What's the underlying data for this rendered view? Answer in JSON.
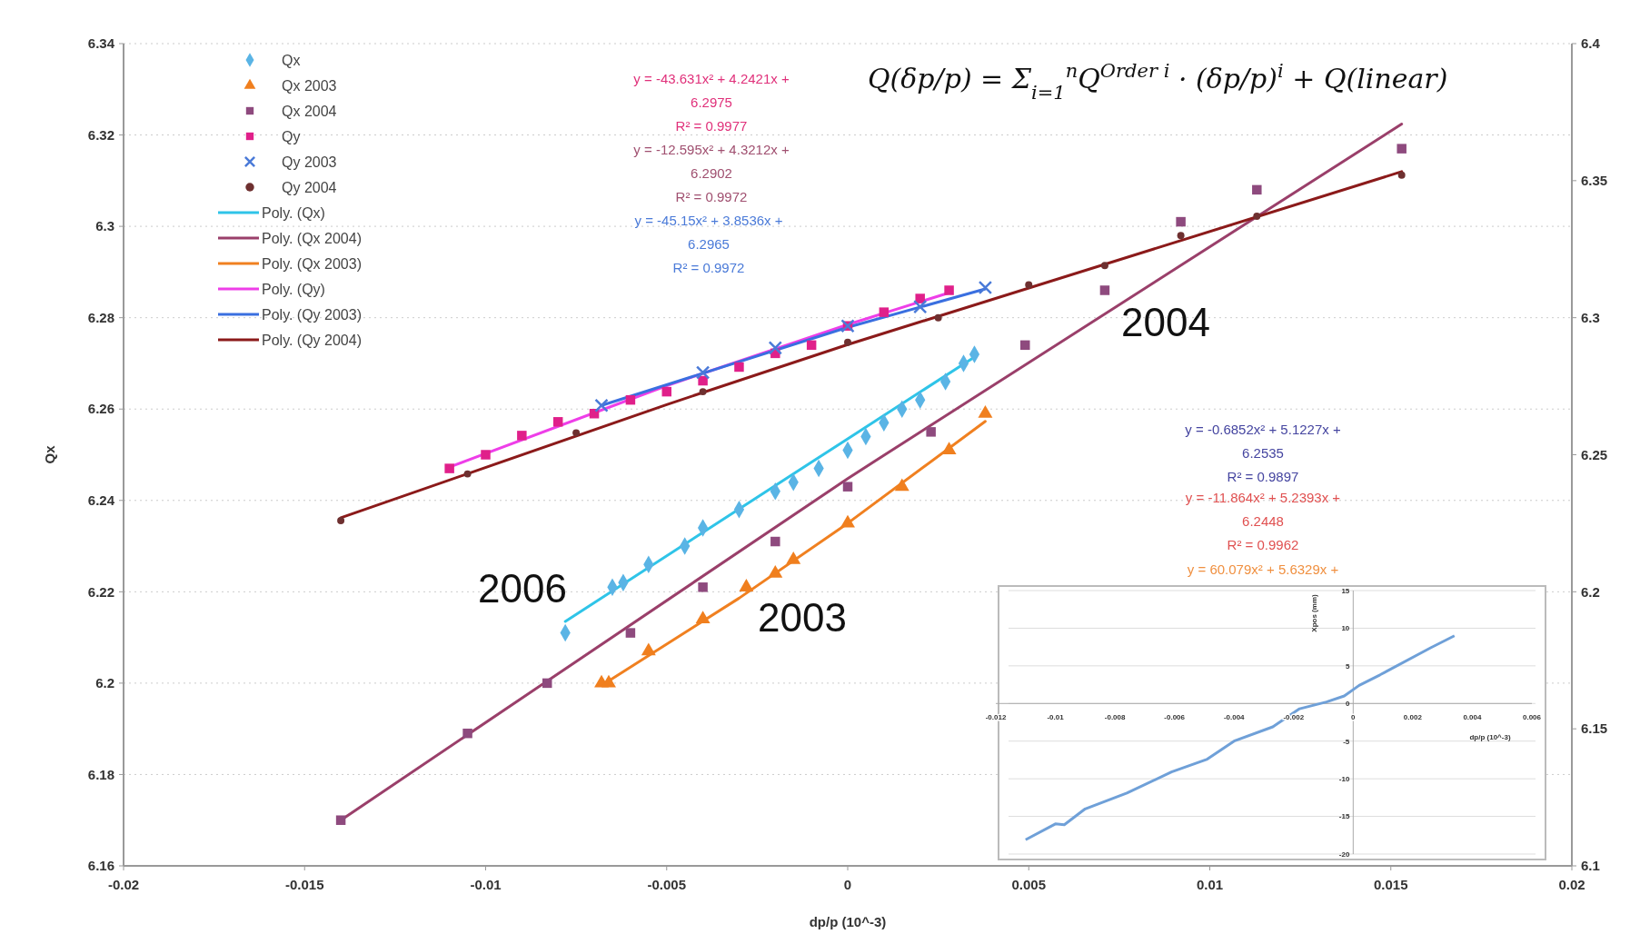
{
  "chart_data": [
    {
      "type": "scatter",
      "xlabel": "dp/p (10^-3)",
      "ylabel": "Qx",
      "xlim": [
        -0.02,
        0.02
      ],
      "xticks": [
        -0.02,
        -0.015,
        -0.01,
        -0.005,
        0,
        0.005,
        0.01,
        0.015,
        0.02
      ],
      "ylim": [
        6.16,
        6.34
      ],
      "yticks": [
        6.16,
        6.18,
        6.2,
        6.22,
        6.24,
        6.26,
        6.28,
        6.3,
        6.32,
        6.34
      ],
      "y2lim": [
        6.1,
        6.4
      ],
      "y2ticks": [
        6.1,
        6.15,
        6.2,
        6.25,
        6.3,
        6.35,
        6.4
      ],
      "grid": "y",
      "legend": "top left",
      "series": [
        {
          "name": "Qx",
          "marker": "diamond",
          "color": "#5ab4e5",
          "x": [
            -0.0078,
            -0.0065,
            -0.0062,
            -0.0055,
            -0.0045,
            -0.004,
            -0.003,
            -0.002,
            -0.0015,
            -0.0008,
            0,
            0.0005,
            0.001,
            0.0015,
            0.002,
            0.0027,
            0.0032,
            0.0035
          ],
          "values": [
            6.211,
            6.221,
            6.222,
            6.226,
            6.23,
            6.234,
            6.238,
            6.242,
            6.244,
            6.247,
            6.251,
            6.254,
            6.257,
            6.26,
            6.262,
            6.266,
            6.27,
            6.272
          ]
        },
        {
          "name": "Qx 2003",
          "marker": "triangle",
          "color": "#f07f1e",
          "x": [
            -0.0068,
            -0.0066,
            -0.0055,
            -0.004,
            -0.0028,
            -0.002,
            -0.0015,
            0,
            0.0015,
            0.0028,
            0.0038
          ],
          "values": [
            6.2,
            6.2,
            6.207,
            6.214,
            6.221,
            6.224,
            6.227,
            6.235,
            6.243,
            6.251,
            6.259
          ]
        },
        {
          "name": "Qx 2004",
          "marker": "square",
          "color": "#8e4a7e",
          "x": [
            -0.014,
            -0.0105,
            -0.0083,
            -0.006,
            -0.004,
            -0.002,
            0,
            0.0023,
            0.0049,
            0.0071,
            0.0092,
            0.0113,
            0.0153
          ],
          "values": [
            6.17,
            6.189,
            6.2,
            6.211,
            6.221,
            6.231,
            6.243,
            6.255,
            6.274,
            6.286,
            6.301,
            6.308,
            6.317
          ]
        },
        {
          "name": "Qy",
          "marker": "square",
          "axis": "y2",
          "color": "#e0208a",
          "x": [
            -0.011,
            -0.01,
            -0.009,
            -0.008,
            -0.007,
            -0.006,
            -0.005,
            -0.004,
            -0.003,
            -0.002,
            -0.001,
            0,
            0.001,
            0.002,
            0.0028
          ],
          "values": [
            6.245,
            6.25,
            6.257,
            6.262,
            6.265,
            6.27,
            6.273,
            6.277,
            6.282,
            6.287,
            6.29,
            6.297,
            6.302,
            6.307,
            6.31
          ]
        },
        {
          "name": "Qy 2003",
          "marker": "cross",
          "axis": "y2",
          "color": "#4a7ad8",
          "x": [
            -0.0068,
            -0.004,
            -0.002,
            0,
            0.002,
            0.0038
          ],
          "values": [
            6.268,
            6.28,
            6.289,
            6.297,
            6.304,
            6.311
          ]
        },
        {
          "name": "Qy 2004",
          "marker": "circle",
          "axis": "y2",
          "color": "#6e3030",
          "x": [
            -0.014,
            -0.0105,
            -0.0075,
            -0.004,
            0,
            0.0025,
            0.005,
            0.0071,
            0.0092,
            0.0113,
            0.0153
          ],
          "values": [
            6.226,
            6.243,
            6.258,
            6.273,
            6.291,
            6.3,
            6.312,
            6.319,
            6.33,
            6.337,
            6.352
          ]
        },
        {
          "name": "Poly. (Qx)",
          "type": "line",
          "marker": "none",
          "color": "#2fc4e8",
          "x": [
            -0.0078,
            -0.004,
            0,
            0.0035
          ],
          "values": [
            6.2135,
            6.233,
            6.2535,
            6.2714
          ]
        },
        {
          "name": "Poly. (Qx 2004)",
          "type": "line",
          "marker": "none",
          "color": "#9a3f6a",
          "x": [
            -0.014,
            0,
            0.0153
          ],
          "values": [
            6.17,
            6.2448,
            6.3224
          ]
        },
        {
          "name": "Poly. (Qx 2003)",
          "type": "line",
          "marker": "none",
          "color": "#f08020",
          "x": [
            -0.0068,
            -0.003,
            0,
            0.0038
          ],
          "values": [
            6.1995,
            6.2186,
            6.235,
            6.2573
          ]
        },
        {
          "name": "Poly. (Qy)",
          "type": "line",
          "marker": "none",
          "axis": "y2",
          "color": "#ee3ee8",
          "x": [
            -0.011,
            -0.005,
            0,
            0.0028
          ],
          "values": [
            6.2455,
            6.2752,
            6.2975,
            6.3091
          ]
        },
        {
          "name": "Poly. (Qy 2003)",
          "type": "line",
          "marker": "none",
          "axis": "y2",
          "color": "#3a6fe0",
          "x": [
            -0.0068,
            0,
            0.0038
          ],
          "values": [
            6.268,
            6.2965,
            6.3105
          ]
        },
        {
          "name": "Poly. (Qy 2004)",
          "type": "line",
          "marker": "none",
          "axis": "y2",
          "color": "#8b1a1a",
          "x": [
            -0.014,
            -0.005,
            0,
            0.0153
          ],
          "values": [
            6.227,
            6.2683,
            6.2902,
            6.3533
          ]
        }
      ],
      "annotations": [
        "Q(δp/p) = Σ$_{i=1}$$^{n}$Q$^{Order i}$ · (δp/p)$^{i}$ + Q(linear)",
        "y = -43.631x² + 4.2421x +\n6.2975\nR² = 0.9977",
        "y = -12.595x² + 4.3212x +\n6.2902\nR² = 0.9972",
        "y = -45.15x² + 3.8536x +\n6.2965\nR² = 0.9972",
        "y = -0.6852x² + 5.1227x +\n6.2535\nR² = 0.9897",
        "y = -11.864x² + 5.2393x +\n6.2448\nR² = 0.9962",
        "y = 60.079x² + 5.6329x +",
        "2006",
        "2003",
        "2004"
      ]
    },
    {
      "type": "line",
      "xlabel": "dp/p (10^-3)",
      "ylabel": "Xpos (mm)",
      "xlim": [
        -0.012,
        0.006
      ],
      "xticks": [
        -0.012,
        -0.01,
        -0.008,
        -0.006,
        -0.004,
        -0.002,
        0,
        0.002,
        0.004,
        0.006
      ],
      "ylim": [
        -20,
        15
      ],
      "yticks": [
        -20,
        -15,
        -10,
        -5,
        0,
        5,
        10,
        15
      ],
      "grid": "y",
      "series": [
        {
          "color": "#6fa0d8",
          "x": [
            -0.011,
            -0.01,
            -0.0097,
            -0.009,
            -0.0076,
            -0.0061,
            -0.0049,
            -0.004,
            -0.0027,
            -0.0018,
            -0.0009,
            -0.0003,
            0.0002,
            0.0009,
            0.0026,
            0.0034
          ],
          "values": [
            -18.1,
            -16,
            -16.1,
            -14,
            -11.9,
            -9.1,
            -7.4,
            -5,
            -3.1,
            -0.7,
            0.2,
            1,
            2.4,
            3.8,
            7.4,
            9
          ]
        }
      ]
    }
  ]
}
